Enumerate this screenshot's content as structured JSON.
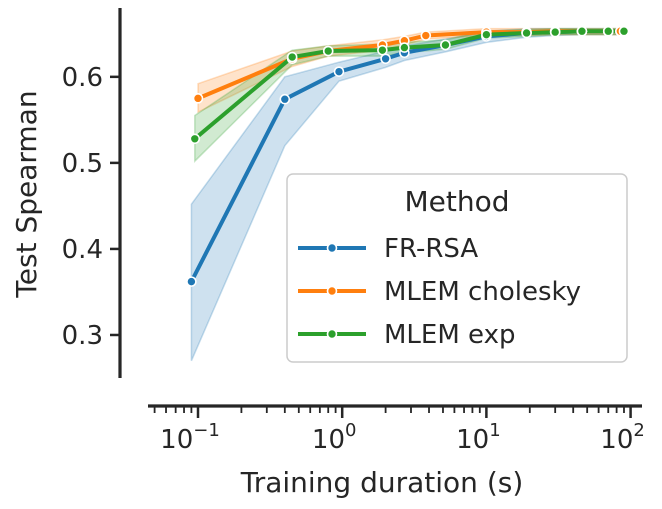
{
  "chart_data": {
    "type": "line",
    "xlabel": "Training duration (s)",
    "ylabel": "Test Spearman",
    "xscale": "log",
    "xlim": [
      0.045,
      120
    ],
    "ylim": [
      0.25,
      0.68
    ],
    "xticks": [
      {
        "value": 0.1,
        "base": "10",
        "exp": "−1"
      },
      {
        "value": 1,
        "base": "10",
        "exp": "0"
      },
      {
        "value": 10,
        "base": "10",
        "exp": "1"
      },
      {
        "value": 100,
        "base": "10",
        "exp": "2"
      }
    ],
    "yticks": [
      {
        "value": 0.3,
        "label": "0.3"
      },
      {
        "value": 0.4,
        "label": "0.4"
      },
      {
        "value": 0.5,
        "label": "0.5"
      },
      {
        "value": 0.6,
        "label": "0.6"
      }
    ],
    "legend": {
      "title": "Method",
      "position": "lower-right"
    },
    "series": [
      {
        "name": "FR-RSA",
        "color": "#1f77b4",
        "x": [
          0.09,
          0.4,
          0.95,
          2.0,
          2.7,
          5.2,
          10,
          19,
          30,
          46,
          70,
          85
        ],
        "y": [
          0.362,
          0.574,
          0.606,
          0.621,
          0.628,
          0.637,
          0.647,
          0.651,
          0.652,
          0.653,
          0.653,
          0.653
        ],
        "lower": [
          0.27,
          0.52,
          0.595,
          0.611,
          0.619,
          0.629,
          0.64,
          0.646,
          0.648,
          0.649,
          0.649,
          0.649
        ],
        "upper": [
          0.452,
          0.6,
          0.617,
          0.63,
          0.636,
          0.644,
          0.653,
          0.656,
          0.656,
          0.656,
          0.656,
          0.656
        ]
      },
      {
        "name": "MLEM cholesky",
        "color": "#ff7f0e",
        "x": [
          0.1,
          0.45,
          0.8,
          1.9,
          2.7,
          3.8,
          10,
          19,
          30,
          46,
          70,
          85
        ],
        "y": [
          0.575,
          0.621,
          0.63,
          0.637,
          0.642,
          0.648,
          0.652,
          0.652,
          0.653,
          0.653,
          0.653,
          0.653
        ],
        "lower": [
          0.559,
          0.612,
          0.624,
          0.631,
          0.637,
          0.644,
          0.648,
          0.648,
          0.649,
          0.649,
          0.649,
          0.649
        ],
        "upper": [
          0.592,
          0.63,
          0.636,
          0.643,
          0.647,
          0.652,
          0.656,
          0.656,
          0.656,
          0.656,
          0.656,
          0.656
        ]
      },
      {
        "name": "MLEM exp",
        "color": "#2ca02c",
        "x": [
          0.095,
          0.45,
          0.8,
          1.9,
          2.7,
          5.2,
          10,
          19,
          30,
          46,
          70,
          90
        ],
        "y": [
          0.528,
          0.623,
          0.63,
          0.631,
          0.634,
          0.637,
          0.649,
          0.651,
          0.652,
          0.653,
          0.653,
          0.653
        ],
        "lower": [
          0.502,
          0.614,
          0.624,
          0.624,
          0.628,
          0.632,
          0.645,
          0.647,
          0.649,
          0.649,
          0.649,
          0.649
        ],
        "upper": [
          0.555,
          0.631,
          0.636,
          0.638,
          0.64,
          0.643,
          0.653,
          0.655,
          0.656,
          0.656,
          0.656,
          0.656
        ]
      }
    ]
  }
}
